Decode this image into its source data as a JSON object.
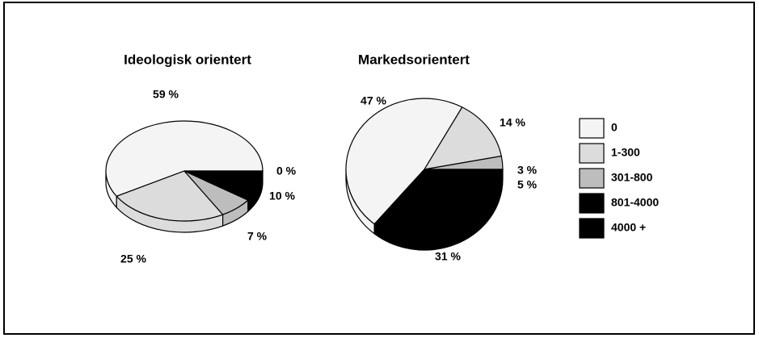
{
  "legend": {
    "labels": [
      "0",
      "1-300",
      "301-800",
      "801-4000",
      "4000 +"
    ],
    "colors": [
      "#f4f4f4",
      "#dcdcdc",
      "#bdbdbd",
      "#000000",
      "#000000"
    ]
  },
  "chart_data": [
    {
      "type": "pie",
      "title": "Ideologisk orientert",
      "values": [
        59,
        25,
        7,
        10,
        0
      ],
      "value_labels": [
        "59 %",
        "25 %",
        "7 %",
        "10 %",
        "0 %"
      ]
    },
    {
      "type": "pie",
      "title": "Markedsorientert",
      "values": [
        47,
        14,
        3,
        5,
        31
      ],
      "value_labels": [
        "47 %",
        "14 %",
        "3 %",
        "5 %",
        "31 %"
      ]
    }
  ]
}
